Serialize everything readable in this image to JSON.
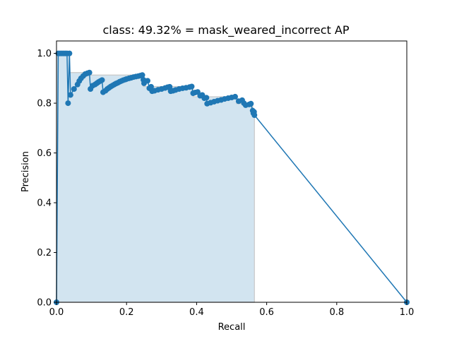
{
  "chart_data": {
    "type": "line",
    "title": "class: 49.32% = mask_weared_incorrect AP",
    "xlabel": "Recall",
    "ylabel": "Precision",
    "xlim": [
      0,
      1
    ],
    "ylim": [
      0,
      1.05
    ],
    "xticks": [
      "0.0",
      "0.2",
      "0.4",
      "0.6",
      "0.8",
      "1.0"
    ],
    "yticks": [
      "0.0",
      "0.2",
      "0.4",
      "0.6",
      "0.8",
      "1.0"
    ],
    "grid": false,
    "legend": "none",
    "colors": {
      "line": "#1f77b4",
      "fill": "#1f77b4",
      "fill_edge": "#c8c8c8"
    },
    "series": [
      {
        "values_xy": [
          [
            0.0,
            0.0
          ],
          [
            0.005,
            1.0
          ],
          [
            0.01,
            1.0
          ],
          [
            0.015,
            1.0
          ],
          [
            0.02,
            1.0
          ],
          [
            0.025,
            1.0
          ],
          [
            0.03,
            1.0
          ],
          [
            0.033,
            0.8
          ],
          [
            0.037,
            1.0
          ],
          [
            0.04,
            0.833
          ],
          [
            0.05,
            0.857
          ],
          [
            0.06,
            0.875
          ],
          [
            0.065,
            0.889
          ],
          [
            0.07,
            0.9
          ],
          [
            0.076,
            0.909
          ],
          [
            0.082,
            0.917
          ],
          [
            0.088,
            0.92
          ],
          [
            0.094,
            0.923
          ],
          [
            0.097,
            0.857
          ],
          [
            0.103,
            0.87
          ],
          [
            0.11,
            0.875
          ],
          [
            0.115,
            0.88
          ],
          [
            0.12,
            0.885
          ],
          [
            0.125,
            0.889
          ],
          [
            0.13,
            0.893
          ],
          [
            0.133,
            0.844
          ],
          [
            0.14,
            0.85
          ],
          [
            0.145,
            0.857
          ],
          [
            0.15,
            0.862
          ],
          [
            0.155,
            0.867
          ],
          [
            0.16,
            0.871
          ],
          [
            0.165,
            0.875
          ],
          [
            0.17,
            0.879
          ],
          [
            0.175,
            0.882
          ],
          [
            0.18,
            0.886
          ],
          [
            0.185,
            0.889
          ],
          [
            0.19,
            0.892
          ],
          [
            0.196,
            0.895
          ],
          [
            0.2,
            0.897
          ],
          [
            0.207,
            0.9
          ],
          [
            0.213,
            0.902
          ],
          [
            0.22,
            0.905
          ],
          [
            0.227,
            0.907
          ],
          [
            0.234,
            0.909
          ],
          [
            0.24,
            0.911
          ],
          [
            0.245,
            0.913
          ],
          [
            0.248,
            0.894
          ],
          [
            0.25,
            0.88
          ],
          [
            0.26,
            0.89
          ],
          [
            0.265,
            0.86
          ],
          [
            0.27,
            0.866
          ],
          [
            0.273,
            0.848
          ],
          [
            0.28,
            0.85
          ],
          [
            0.29,
            0.854
          ],
          [
            0.3,
            0.857
          ],
          [
            0.31,
            0.861
          ],
          [
            0.317,
            0.864
          ],
          [
            0.323,
            0.866
          ],
          [
            0.326,
            0.848
          ],
          [
            0.333,
            0.85
          ],
          [
            0.34,
            0.853
          ],
          [
            0.35,
            0.857
          ],
          [
            0.36,
            0.86
          ],
          [
            0.37,
            0.862
          ],
          [
            0.38,
            0.865
          ],
          [
            0.386,
            0.867
          ],
          [
            0.39,
            0.84
          ],
          [
            0.396,
            0.843
          ],
          [
            0.403,
            0.845
          ],
          [
            0.41,
            0.83
          ],
          [
            0.416,
            0.833
          ],
          [
            0.422,
            0.82
          ],
          [
            0.428,
            0.822
          ],
          [
            0.43,
            0.798
          ],
          [
            0.44,
            0.802
          ],
          [
            0.45,
            0.806
          ],
          [
            0.46,
            0.81
          ],
          [
            0.47,
            0.813
          ],
          [
            0.48,
            0.817
          ],
          [
            0.49,
            0.82
          ],
          [
            0.5,
            0.823
          ],
          [
            0.51,
            0.826
          ],
          [
            0.52,
            0.808
          ],
          [
            0.53,
            0.812
          ],
          [
            0.535,
            0.8
          ],
          [
            0.54,
            0.792
          ],
          [
            0.55,
            0.795
          ],
          [
            0.555,
            0.798
          ],
          [
            0.56,
            0.77
          ],
          [
            0.562,
            0.76
          ],
          [
            0.564,
            0.765
          ],
          [
            0.565,
            0.752
          ],
          [
            1.0,
            0.0
          ]
        ]
      }
    ],
    "interpolated_envelope": [
      [
        0.0,
        1.0
      ],
      [
        0.037,
        1.0
      ],
      [
        0.037,
        0.923
      ],
      [
        0.097,
        0.923
      ],
      [
        0.097,
        0.913
      ],
      [
        0.248,
        0.913
      ],
      [
        0.248,
        0.867
      ],
      [
        0.39,
        0.867
      ],
      [
        0.39,
        0.826
      ],
      [
        0.514,
        0.826
      ],
      [
        0.514,
        0.798
      ],
      [
        0.56,
        0.798
      ],
      [
        0.56,
        0.765
      ],
      [
        0.564,
        0.765
      ],
      [
        0.564,
        0.752
      ],
      [
        0.565,
        0.752
      ],
      [
        0.565,
        0.0
      ]
    ]
  }
}
